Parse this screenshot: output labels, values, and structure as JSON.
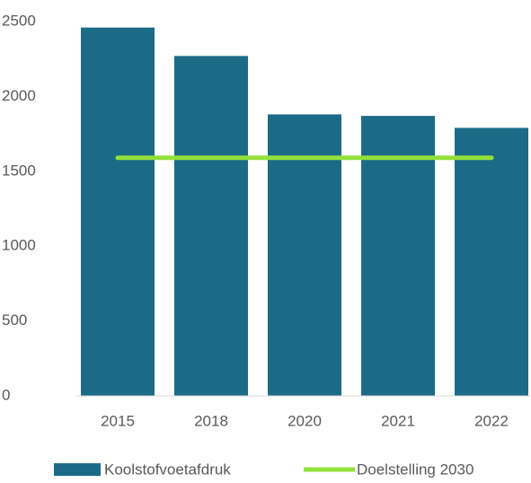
{
  "chart_data": {
    "type": "bar",
    "categories": [
      "2015",
      "2018",
      "2020",
      "2021",
      "2022"
    ],
    "series": [
      {
        "name": "Koolstofvoetafdruk",
        "type": "bar",
        "color": "#1b6b87",
        "values": [
          2460,
          2270,
          1880,
          1870,
          1790
        ]
      },
      {
        "name": "Doelstelling 2030",
        "type": "line",
        "color": "#92e03a",
        "values": [
          1590,
          1590,
          1590,
          1590,
          1590
        ]
      }
    ],
    "ylim": [
      0,
      2500
    ],
    "yticks": [
      0,
      500,
      1000,
      1500,
      2000,
      2500
    ],
    "grid": false,
    "legend": "bottom"
  }
}
